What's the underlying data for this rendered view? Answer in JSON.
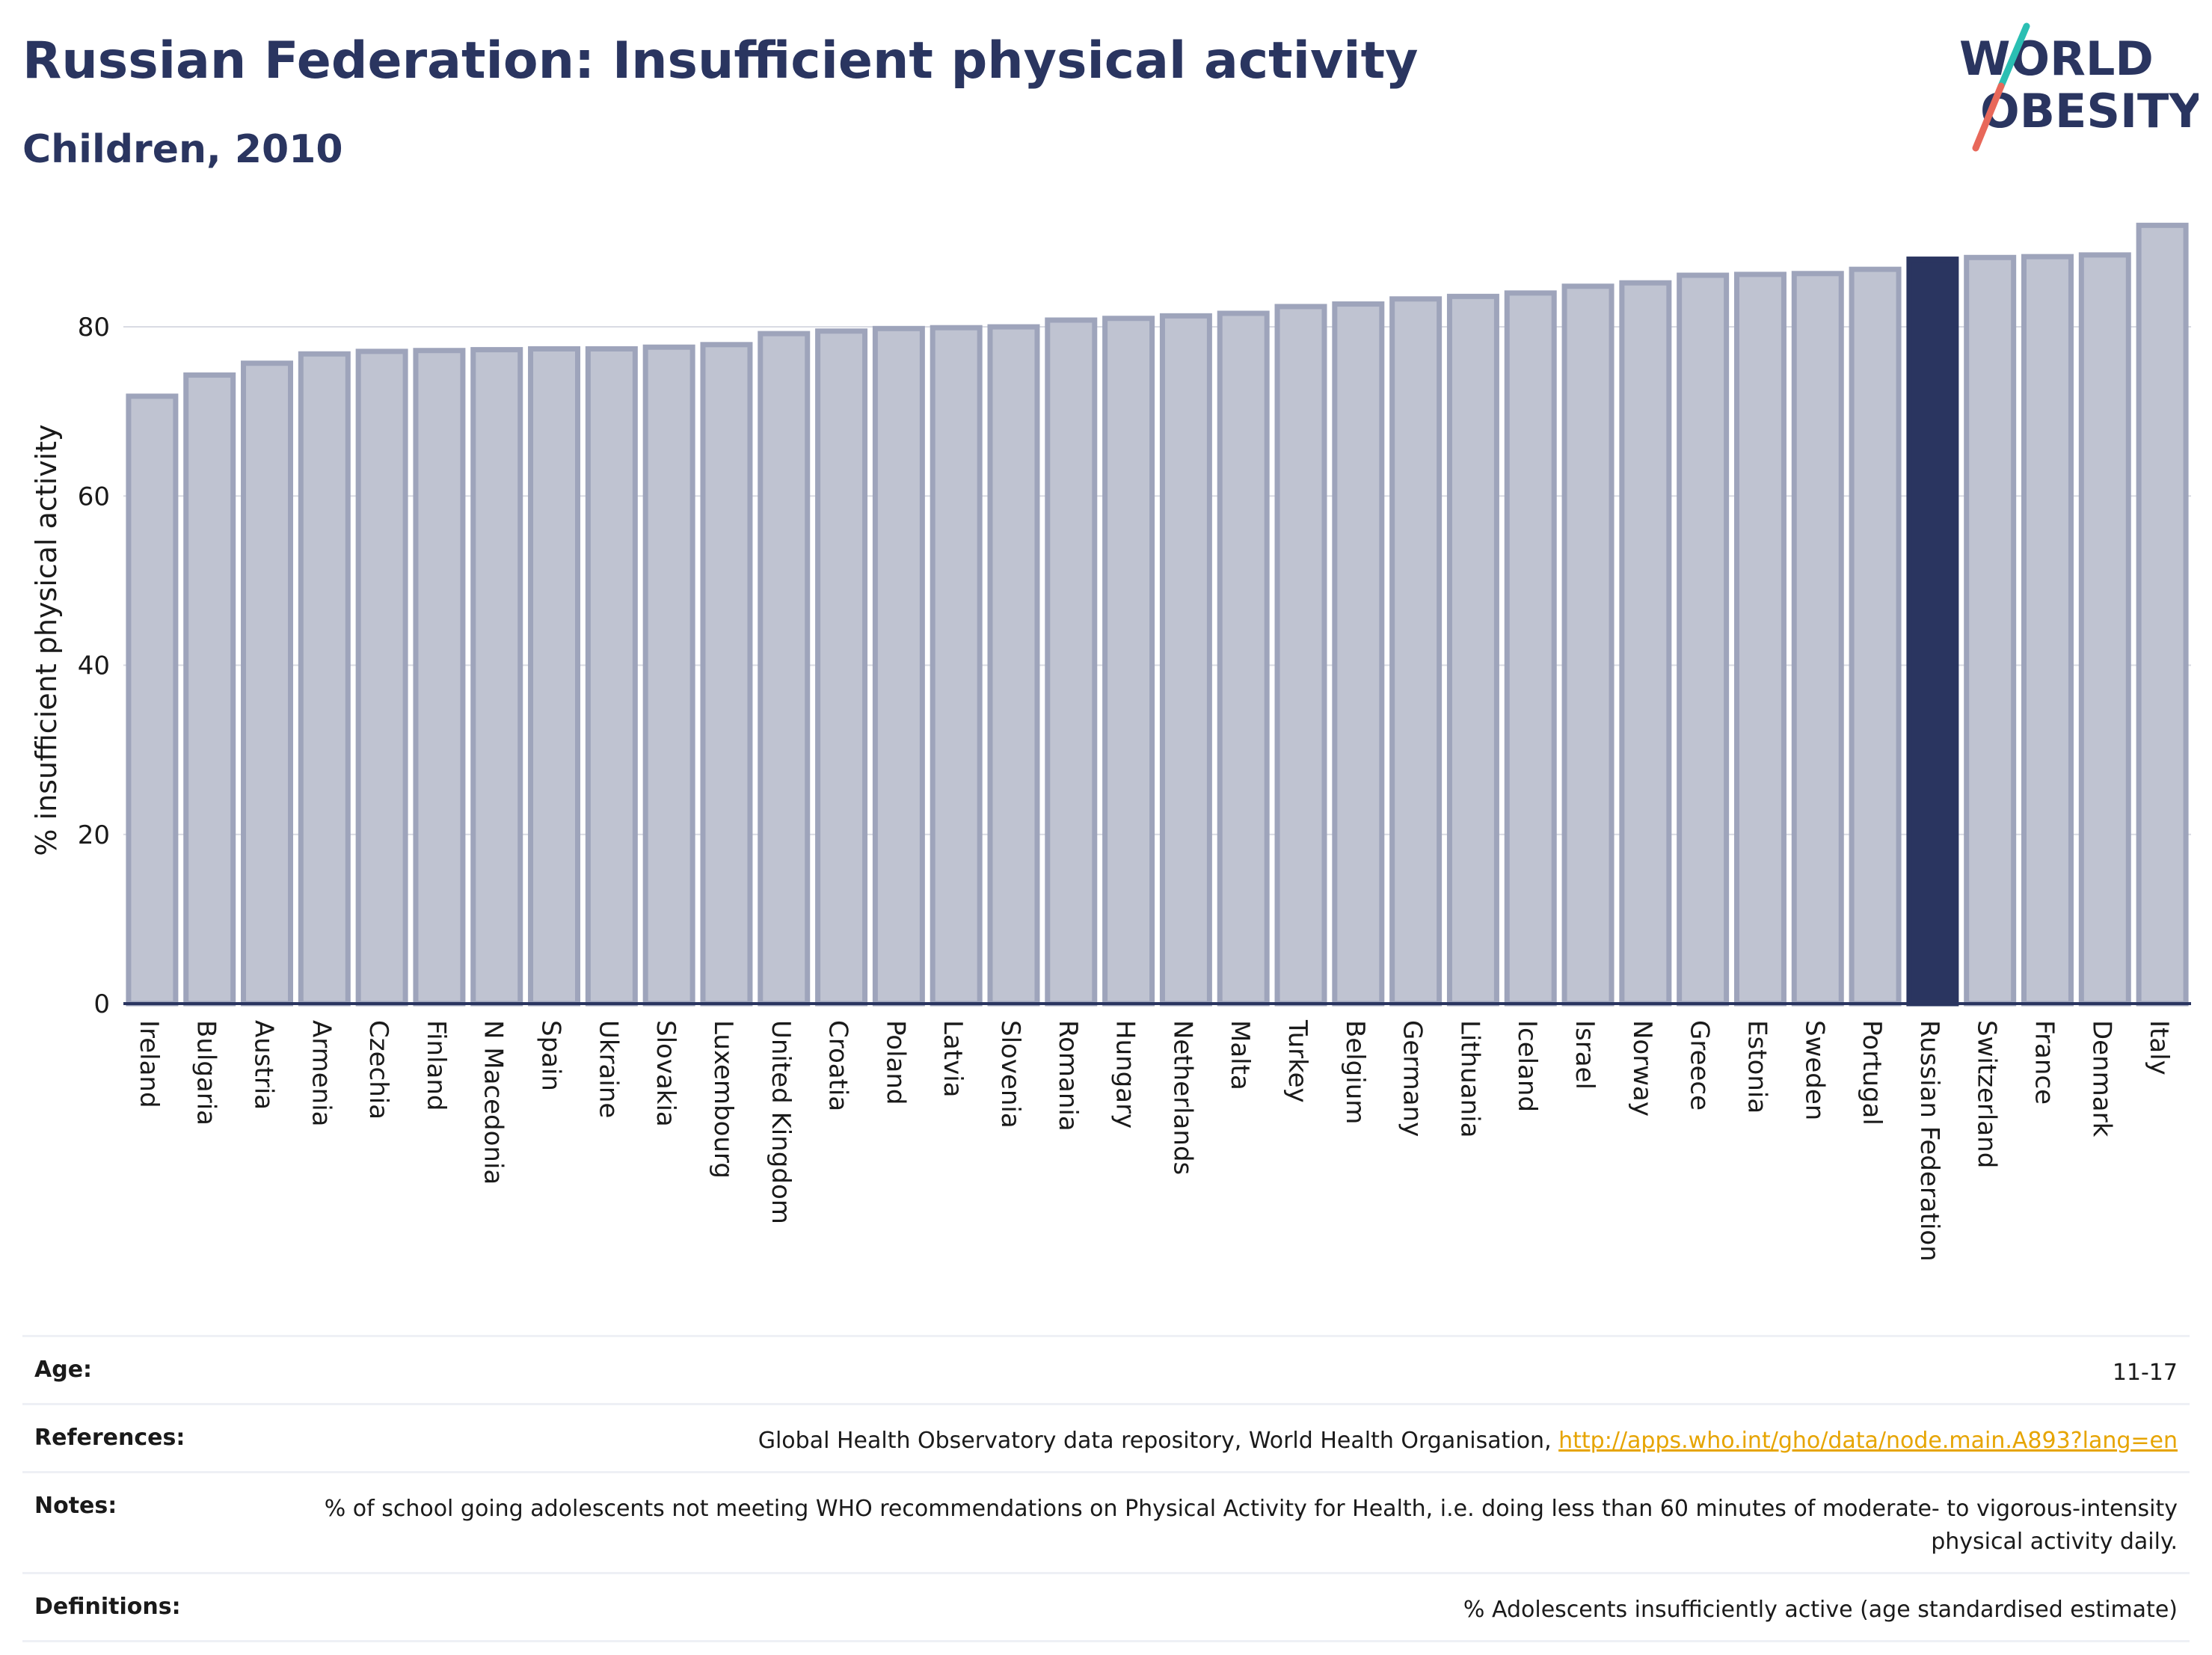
{
  "header": {
    "title": "Russian Federation: Insufficient physical activity",
    "subtitle": "Children, 2010"
  },
  "logo": {
    "line1": "WORLD",
    "line2": "OBESITY",
    "colors": {
      "text": "#2a3560",
      "slash_top": "#2bbfb3",
      "slash_bottom": "#e8685a"
    }
  },
  "colors": {
    "bar": "#bfc3d1",
    "bar_stroke": "#9ea4bb",
    "highlight": "#2a3560",
    "axis": "#2a3560",
    "grid": "#d9dbe3"
  },
  "chart_data": {
    "type": "bar",
    "title": "",
    "xlabel": "",
    "ylabel": "% insufficient physical activity",
    "ylim": [
      0,
      93
    ],
    "yticks": [
      0,
      20,
      40,
      60,
      80
    ],
    "grid": true,
    "highlight": "Russian Federation",
    "categories": [
      "Ireland",
      "Bulgaria",
      "Austria",
      "Armenia",
      "Czechia",
      "Finland",
      "N Macedonia",
      "Spain",
      "Ukraine",
      "Slovakia",
      "Luxembourg",
      "United Kingdom",
      "Croatia",
      "Poland",
      "Latvia",
      "Slovenia",
      "Romania",
      "Hungary",
      "Netherlands",
      "Malta",
      "Turkey",
      "Belgium",
      "Germany",
      "Lithuania",
      "Iceland",
      "Israel",
      "Norway",
      "Greece",
      "Estonia",
      "Sweden",
      "Portugal",
      "Russian Federation",
      "Switzerland",
      "France",
      "Denmark",
      "Italy"
    ],
    "values": [
      71.8,
      74.3,
      75.7,
      76.8,
      77.1,
      77.2,
      77.3,
      77.4,
      77.4,
      77.6,
      77.9,
      79.2,
      79.5,
      79.8,
      79.9,
      80.0,
      80.8,
      81.0,
      81.3,
      81.6,
      82.4,
      82.7,
      83.3,
      83.6,
      84.0,
      84.8,
      85.2,
      86.1,
      86.2,
      86.3,
      86.8,
      88.0,
      88.2,
      88.3,
      88.5,
      92.0
    ]
  },
  "info": {
    "age_label": "Age:",
    "age_value": "11-17",
    "references_label": "References:",
    "references_text": "Global Health Observatory data repository, World Health Organisation, ",
    "references_link": "http://apps.who.int/gho/data/node.main.A893?lang=en",
    "notes_label": "Notes:",
    "notes_value": "% of school going adolescents not meeting WHO recommendations on Physical Activity for Health, i.e. doing less than 60 minutes of moderate- to vigorous-intensity physical activity daily.",
    "definitions_label": "Definitions:",
    "definitions_value": "% Adolescents insufficiently active (age standardised estimate)"
  }
}
